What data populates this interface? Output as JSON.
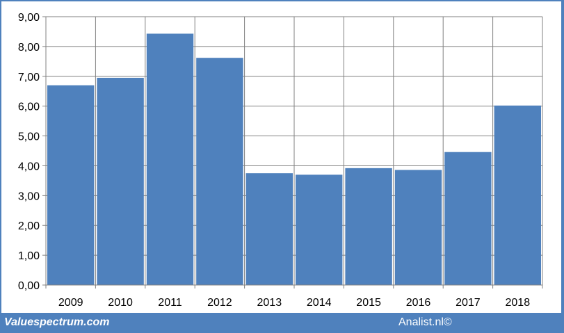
{
  "footer": {
    "left_text": "Valuespectrum.com",
    "right_text": "Analist.nl©"
  },
  "colors": {
    "bar": "#4f81bd",
    "frame": "#4f81bd",
    "grid": "#808080"
  },
  "chart_data": {
    "type": "bar",
    "title": "",
    "xlabel": "",
    "ylabel": "",
    "categories": [
      "2009",
      "2010",
      "2011",
      "2012",
      "2013",
      "2014",
      "2015",
      "2016",
      "2017",
      "2018"
    ],
    "values": [
      6.7,
      6.95,
      8.43,
      7.62,
      3.75,
      3.7,
      3.92,
      3.86,
      4.46,
      6.02
    ],
    "ylim": [
      0,
      9
    ],
    "yticks": [
      0,
      1,
      2,
      3,
      4,
      5,
      6,
      7,
      8,
      9
    ],
    "ytick_labels": [
      "0,00",
      "1,00",
      "2,00",
      "3,00",
      "4,00",
      "5,00",
      "6,00",
      "7,00",
      "8,00",
      "9,00"
    ],
    "grid": true,
    "legend": "none"
  }
}
